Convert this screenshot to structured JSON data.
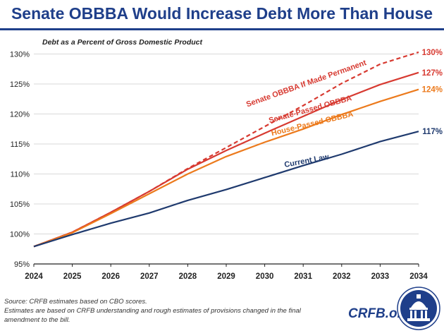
{
  "title": "Senate OBBBA Would Increase Debt More Than House",
  "chart_data": {
    "type": "line",
    "subtitle": "Debt as a Percent of Gross Domestic Product",
    "x": [
      2024,
      2025,
      2026,
      2027,
      2028,
      2029,
      2030,
      2031,
      2032,
      2033,
      2034
    ],
    "ylim": [
      95,
      131
    ],
    "yticks": [
      95,
      100,
      105,
      110,
      115,
      120,
      125,
      130
    ],
    "ytick_format": "{v}%",
    "grid": "horizontal",
    "series": [
      {
        "name": "Senate OBBBA If Made Permanent",
        "color": "#d73a31",
        "dashed": true,
        "values": [
          97.9,
          100.3,
          103.6,
          107.1,
          110.9,
          114.4,
          117.9,
          121.4,
          125.1,
          128.3,
          130.3
        ],
        "end_label": "130%"
      },
      {
        "name": "Senate-Passed OBBBA",
        "color": "#d73a31",
        "dashed": false,
        "values": [
          97.9,
          100.3,
          103.6,
          107.1,
          110.8,
          113.9,
          116.8,
          119.6,
          122.4,
          124.9,
          126.9
        ],
        "end_label": "127%"
      },
      {
        "name": "House-Passed OBBBA",
        "color": "#ec7a1c",
        "dashed": false,
        "values": [
          97.9,
          100.2,
          103.4,
          106.7,
          110.0,
          112.9,
          115.3,
          117.5,
          119.9,
          122.1,
          124.1
        ],
        "end_label": "124%"
      },
      {
        "name": "Current Law",
        "color": "#1f3a6e",
        "dashed": false,
        "values": [
          97.9,
          99.9,
          101.8,
          103.5,
          105.6,
          107.4,
          109.4,
          111.4,
          113.3,
          115.4,
          117.1
        ],
        "end_label": "117%"
      }
    ]
  },
  "footer": {
    "source": "Source: CRFB estimates based on CBO scores.",
    "note_line1": "Estimates are based on CRFB understanding and rough estimates of provisions changed in the final",
    "note_line2": "amendment to the bill.",
    "site": "CRFB.org"
  }
}
